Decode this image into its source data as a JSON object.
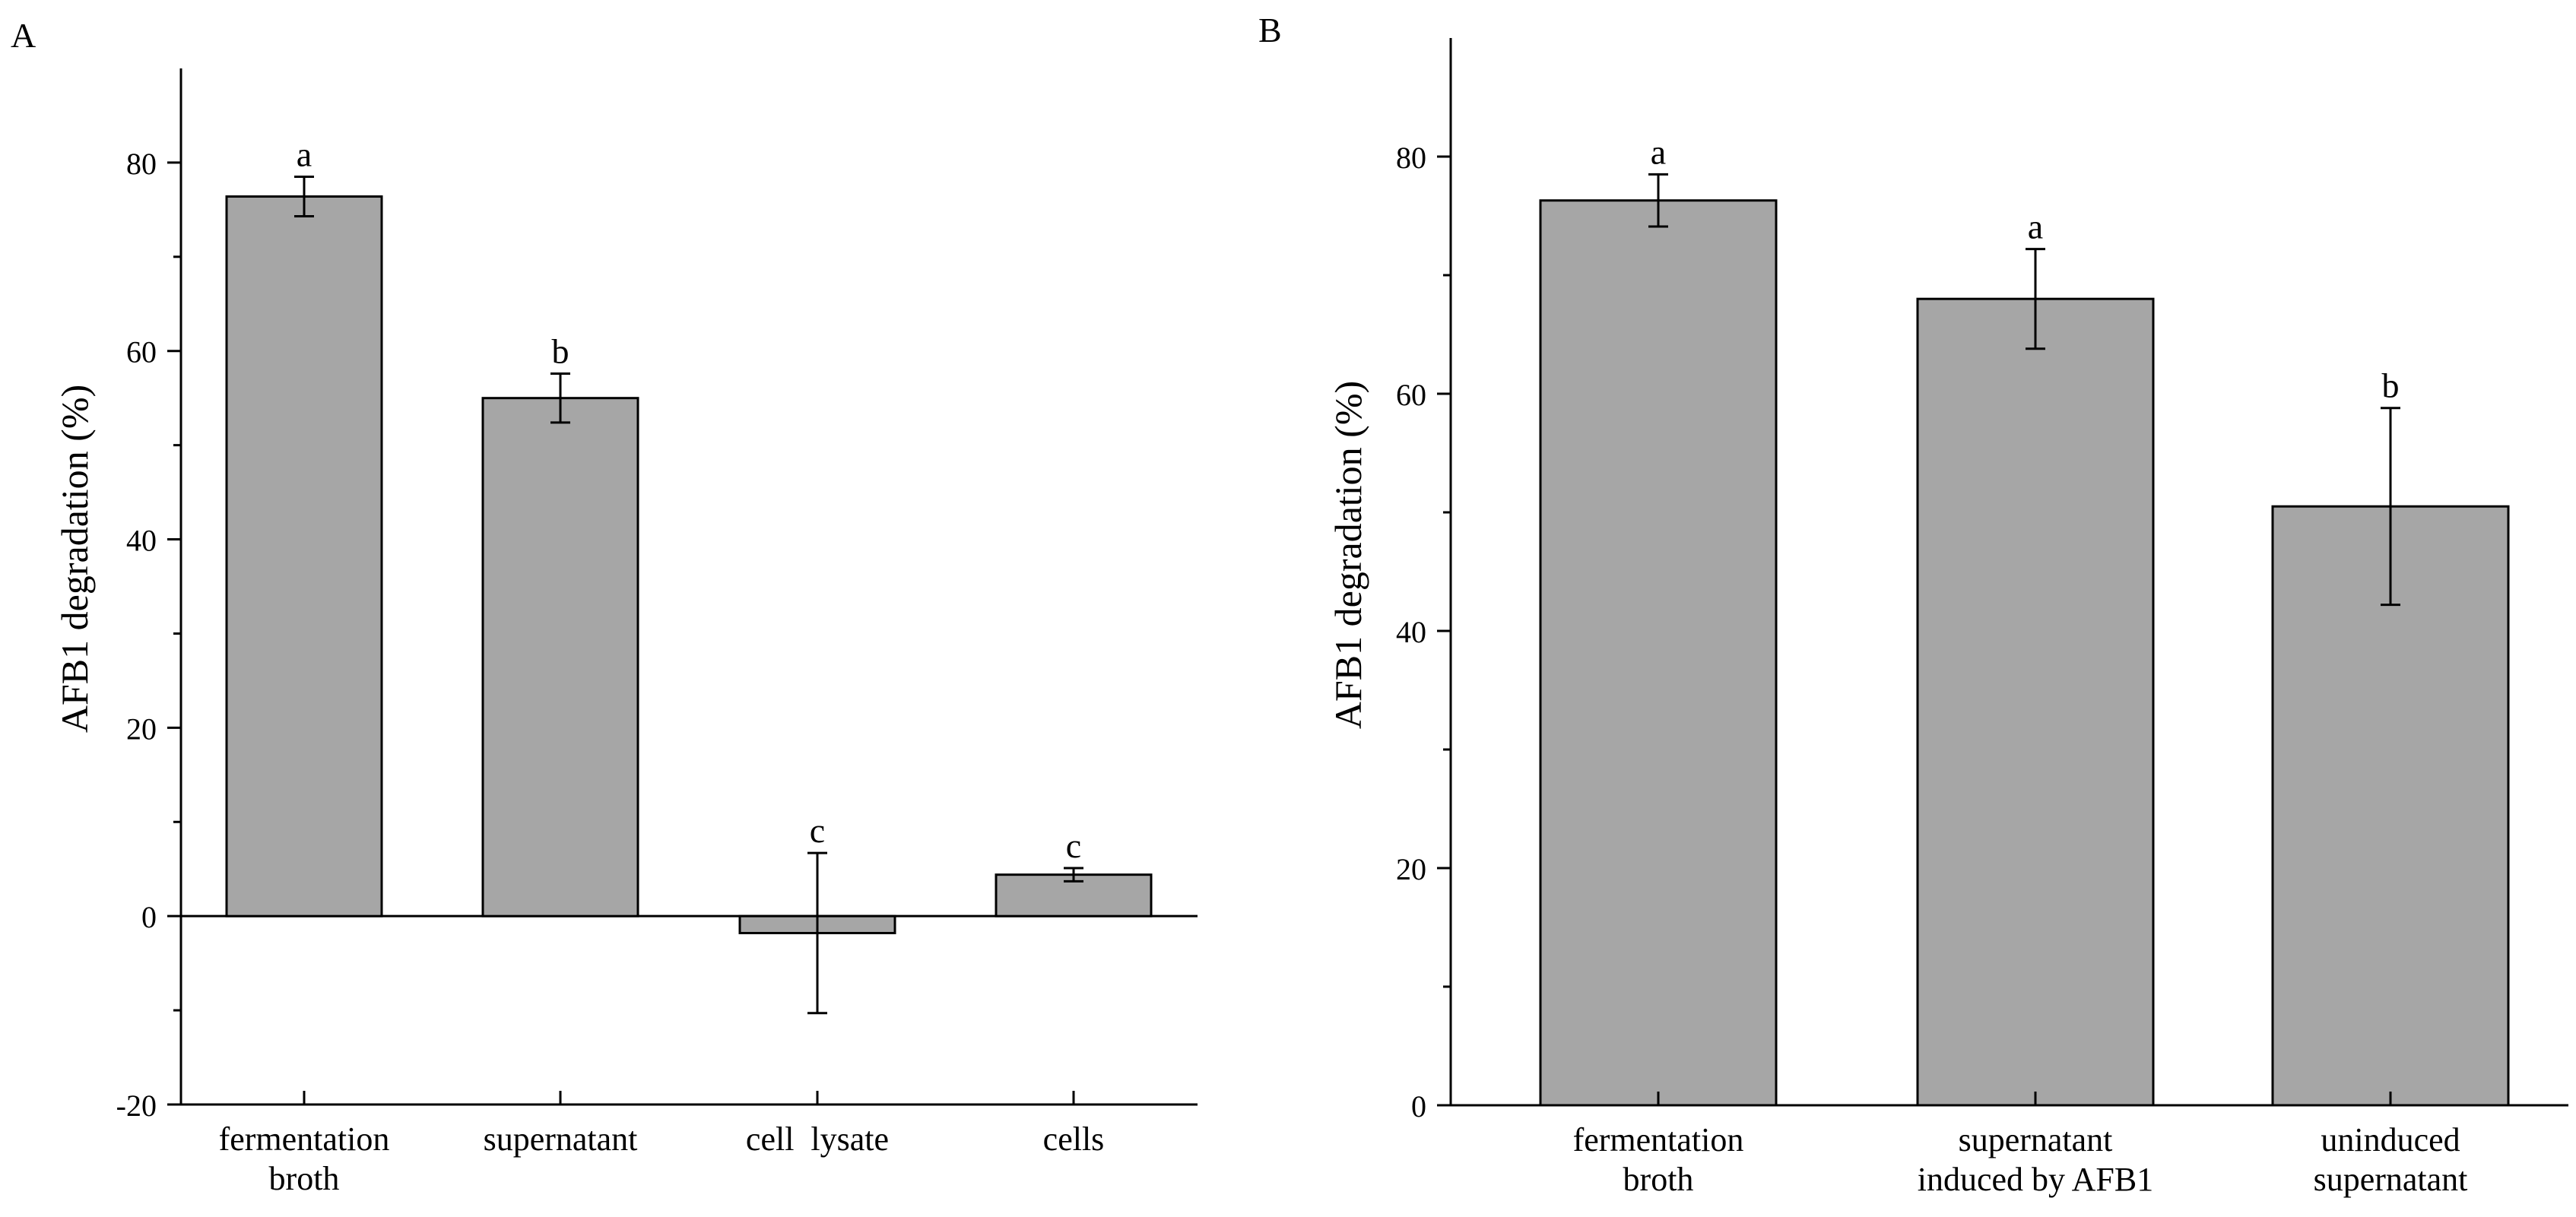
{
  "colors": {
    "bar_fill": "#a6a6a6",
    "stroke": "#000000",
    "background": "#ffffff"
  },
  "chart_data": [
    {
      "type": "bar",
      "panel_label": "A",
      "title": "",
      "xlabel": "",
      "ylabel": "AFB1 degradation (%)",
      "ylim": [
        -20,
        90
      ],
      "yticks": [
        -20,
        0,
        20,
        40,
        60,
        80
      ],
      "grid": false,
      "categories": [
        {
          "lines": [
            "fermentation",
            "broth"
          ]
        },
        {
          "lines": [
            "supernatant"
          ]
        },
        {
          "lines": [
            "cell  lysate"
          ]
        },
        {
          "lines": [
            "cells"
          ]
        }
      ],
      "values": [
        76.4,
        55.0,
        -1.8,
        4.4
      ],
      "errors": [
        2.1,
        2.6,
        8.5,
        0.7
      ],
      "letters": [
        "a",
        "b",
        "c",
        "c"
      ]
    },
    {
      "type": "bar",
      "panel_label": "B",
      "title": "",
      "xlabel": "",
      "ylabel": "AFB1 degradation (%)",
      "ylim": [
        0,
        90
      ],
      "yticks": [
        0,
        20,
        40,
        60,
        80
      ],
      "grid": false,
      "categories": [
        {
          "lines": [
            "fermentation",
            "broth"
          ]
        },
        {
          "lines": [
            "supernatant",
            "induced by AFB1"
          ]
        },
        {
          "lines": [
            "uninduced",
            "supernatant"
          ]
        }
      ],
      "values": [
        76.3,
        68.0,
        50.5
      ],
      "errors": [
        2.2,
        4.2,
        8.3
      ],
      "letters": [
        "a",
        "a",
        "b"
      ]
    }
  ]
}
